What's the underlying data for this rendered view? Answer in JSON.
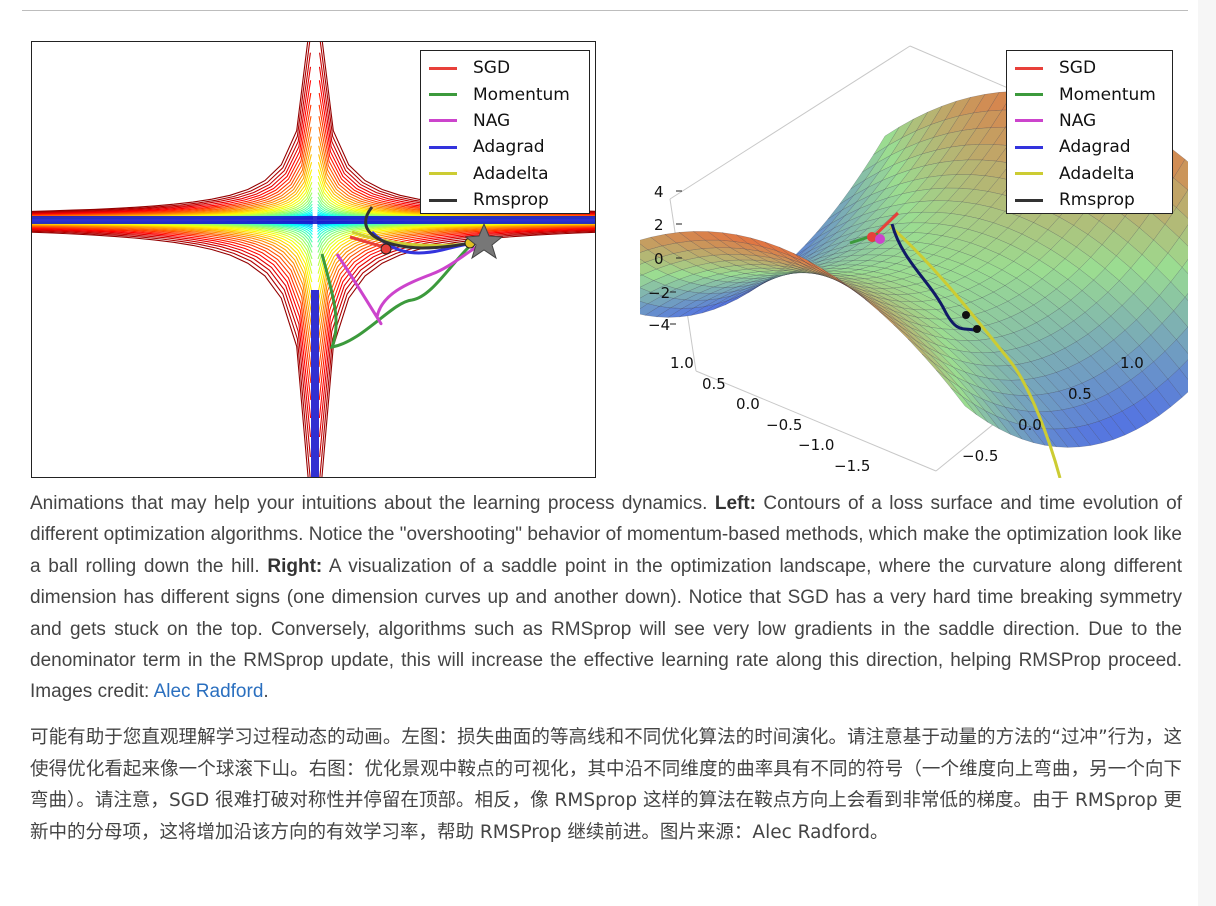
{
  "legend": {
    "entries": [
      {
        "label": "SGD",
        "color": "#e8403a"
      },
      {
        "label": "Momentum",
        "color": "#3c9a3c"
      },
      {
        "label": "NAG",
        "color": "#cc44cc"
      },
      {
        "label": "Adagrad",
        "color": "#3333dd"
      },
      {
        "label": "Adadelta",
        "color": "#cccc33"
      },
      {
        "label": "Rmsprop",
        "color": "#333333"
      }
    ]
  },
  "surface_axes": {
    "z_ticks": [
      "4",
      "2",
      "0",
      "−2",
      "−4"
    ],
    "left_ticks": [
      "1.0",
      "0.5",
      "0.0",
      "−0.5",
      "−1.0",
      "−1.5"
    ],
    "right_ticks": [
      "1.0",
      "0.5",
      "0.0",
      "−0.5"
    ]
  },
  "caption_en": {
    "t1": "Animations that may help your intuitions about the learning process dynamics. ",
    "left_label": "Left:",
    "t2": " Contours of a loss surface and time evolution of different optimization algorithms. Notice the \"overshooting\" behavior of momentum-based methods, which make the optimization look like a ball rolling down the hill. ",
    "right_label": "Right:",
    "t3": " A visualization of a saddle point in the optimization landscape, where the curvature along different dimension has different signs (one dimension curves up and another down). Notice that SGD has a very hard time breaking symmetry and gets stuck on the top. Conversely, algorithms such as RMSprop will see very low gradients in the saddle direction. Due to the denominator term in the RMSprop update, this will increase the effective learning rate along this direction, helping RMSProp proceed. Images credit: ",
    "credit_link": "Alec Radford",
    "t4": "."
  },
  "caption_zh": "可能有助于您直观理解学习过程动态的动画。左图：损失曲面的等高线和不同优化算法的时间演化。请注意基于动量的方法的“过冲”行为，这使得优化看起来像一个球滚下山。右图：优化景观中鞍点的可视化，其中沿不同维度的曲率具有不同的符号（一个维度向上弯曲，另一个向下弯曲）。请注意，SGD 很难打破对称性并停留在顶部。相反，像 RMSprop 这样的算法在鞍点方向上会看到非常低的梯度。由于 RMSprop 更新中的分母项，这将增加沿该方向的有效学习率，帮助 RMSProp 继续前进。图片来源：Alec Radford。"
}
